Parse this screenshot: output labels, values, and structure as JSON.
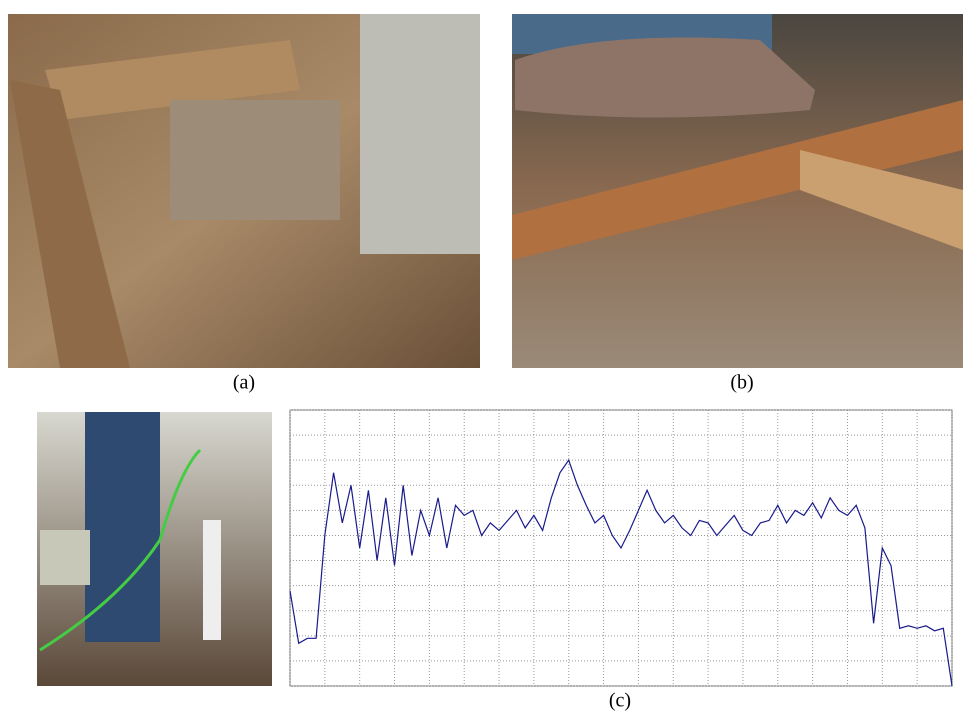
{
  "captions": [
    "(a)",
    "(b)",
    "(c)"
  ],
  "chart_data": {
    "type": "line",
    "x": [
      0,
      0.25,
      0.5,
      0.75,
      1,
      1.25,
      1.5,
      1.75,
      2,
      2.25,
      2.5,
      2.75,
      3,
      3.25,
      3.5,
      3.75,
      4,
      4.25,
      4.5,
      4.75,
      5,
      5.25,
      5.5,
      5.75,
      6,
      6.25,
      6.5,
      6.75,
      7,
      7.25,
      7.5,
      7.75,
      8,
      8.25,
      8.5,
      8.75,
      9,
      9.25,
      9.5,
      9.75,
      10,
      10.25,
      10.5,
      10.75,
      11,
      11.25,
      11.5,
      11.75,
      12,
      12.25,
      12.5,
      12.75,
      13,
      13.25,
      13.5,
      13.75,
      14,
      14.25,
      14.5,
      14.75,
      15,
      15.25,
      15.5,
      15.75,
      16,
      16.25,
      16.5,
      16.75,
      17,
      17.25,
      17.5,
      17.75,
      18,
      18.25,
      18.5,
      18.75,
      19
    ],
    "values": [
      3.8,
      1.7,
      1.9,
      1.9,
      6.0,
      8.5,
      6.5,
      8.0,
      5.5,
      7.8,
      5.0,
      7.5,
      4.8,
      8.0,
      5.2,
      7.0,
      6.0,
      7.5,
      5.5,
      7.2,
      6.8,
      7.0,
      6.0,
      6.5,
      6.2,
      6.6,
      7.0,
      6.3,
      6.8,
      6.2,
      7.5,
      8.5,
      9.0,
      8.0,
      7.2,
      6.5,
      6.8,
      6.0,
      5.5,
      6.2,
      7.0,
      7.8,
      7.0,
      6.5,
      6.8,
      6.3,
      6.0,
      6.6,
      6.5,
      6.0,
      6.4,
      6.8,
      6.2,
      6.0,
      6.5,
      6.6,
      7.2,
      6.5,
      7.0,
      6.8,
      7.3,
      6.7,
      7.5,
      7.0,
      6.8,
      7.2,
      6.3,
      2.5,
      5.5,
      4.8,
      2.3,
      2.4,
      2.3,
      2.4,
      2.2,
      2.3,
      0
    ],
    "color": "#1a1a8c",
    "xlim": [
      0,
      19
    ],
    "ylim": [
      0,
      11
    ],
    "xticks": [
      0,
      1,
      2,
      3,
      4,
      5,
      6,
      7,
      8,
      9,
      10,
      11,
      12,
      13,
      14,
      15,
      16,
      17,
      18,
      19
    ],
    "yticks": [
      0,
      1,
      2,
      3,
      4,
      5,
      6,
      7,
      8,
      9,
      10,
      11
    ],
    "grid": true
  }
}
